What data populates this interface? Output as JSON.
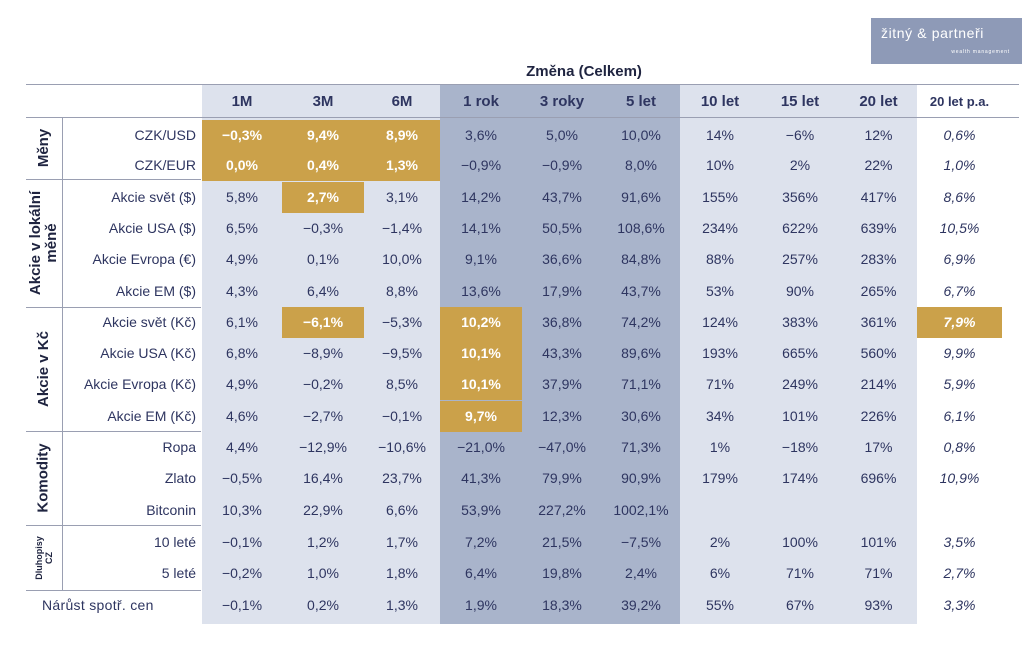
{
  "logo": {
    "name": "žitný & partneři",
    "tagline": "wealth management"
  },
  "title": "Změna (Celkem)",
  "columns": [
    "1M",
    "3M",
    "6M",
    "1 rok",
    "3 roky",
    "5 let",
    "10 let",
    "15 let",
    "20 let",
    "20 let p.a."
  ],
  "groups": [
    {
      "label": "Měny",
      "rows": [
        {
          "name": "CZK/USD",
          "values": [
            "-0,3%",
            "9,4%",
            "8,9%",
            "3,6%",
            "5,0%",
            "10,0%",
            "14%",
            "-6%",
            "12%",
            "0,6%"
          ]
        },
        {
          "name": "CZK/EUR",
          "values": [
            "0,0%",
            "0,4%",
            "1,3%",
            "-0,9%",
            "-0,9%",
            "8,0%",
            "10%",
            "2%",
            "22%",
            "1,0%"
          ]
        }
      ]
    },
    {
      "label": "Akcie v lokální měně",
      "rows": [
        {
          "name": "Akcie svět ($)",
          "values": [
            "5,8%",
            "2,7%",
            "3,1%",
            "14,2%",
            "43,7%",
            "91,6%",
            "155%",
            "356%",
            "417%",
            "8,6%"
          ]
        },
        {
          "name": "Akcie USA ($)",
          "values": [
            "6,5%",
            "-0,3%",
            "-1,4%",
            "14,1%",
            "50,5%",
            "108,6%",
            "234%",
            "622%",
            "639%",
            "10,5%"
          ]
        },
        {
          "name": "Akcie Evropa (€)",
          "values": [
            "4,9%",
            "0,1%",
            "10,0%",
            "9,1%",
            "36,6%",
            "84,8%",
            "88%",
            "257%",
            "283%",
            "6,9%"
          ]
        },
        {
          "name": "Akcie EM ($)",
          "values": [
            "4,3%",
            "6,4%",
            "8,8%",
            "13,6%",
            "17,9%",
            "43,7%",
            "53%",
            "90%",
            "265%",
            "6,7%"
          ]
        }
      ]
    },
    {
      "label": "Akcie v Kč",
      "rows": [
        {
          "name": "Akcie svět (Kč)",
          "values": [
            "6,1%",
            "-6,1%",
            "-5,3%",
            "10,2%",
            "36,8%",
            "74,2%",
            "124%",
            "383%",
            "361%",
            "7,9%"
          ]
        },
        {
          "name": "Akcie USA (Kč)",
          "values": [
            "6,8%",
            "-8,9%",
            "-9,5%",
            "10,1%",
            "43,3%",
            "89,6%",
            "193%",
            "665%",
            "560%",
            "9,9%"
          ]
        },
        {
          "name": "Akcie Evropa (Kč)",
          "values": [
            "4,9%",
            "-0,2%",
            "8,5%",
            "10,1%",
            "37,9%",
            "71,1%",
            "71%",
            "249%",
            "214%",
            "5,9%"
          ]
        },
        {
          "name": "Akcie EM (Kč)",
          "values": [
            "4,6%",
            "-2,7%",
            "-0,1%",
            "9,7%",
            "12,3%",
            "30,6%",
            "34%",
            "101%",
            "226%",
            "6,1%"
          ]
        }
      ]
    },
    {
      "label": "Komodity",
      "rows": [
        {
          "name": "Ropa",
          "values": [
            "4,4%",
            "-12,9%",
            "-10,6%",
            "-21,0%",
            "-47,0%",
            "71,3%",
            "1%",
            "-18%",
            "17%",
            "0,8%"
          ]
        },
        {
          "name": "Zlato",
          "values": [
            "-0,5%",
            "16,4%",
            "23,7%",
            "41,3%",
            "79,9%",
            "90,9%",
            "179%",
            "174%",
            "696%",
            "10,9%"
          ]
        },
        {
          "name": "Bitconin",
          "values": [
            "10,3%",
            "22,9%",
            "6,6%",
            "53,9%",
            "227,2%",
            "1002,1%",
            "",
            "",
            "",
            ""
          ]
        }
      ]
    },
    {
      "label": "Dluhopisy CZ",
      "rows": [
        {
          "name": "10 leté",
          "values": [
            "-0,1%",
            "1,2%",
            "1,7%",
            "7,2%",
            "21,5%",
            "-7,5%",
            "2%",
            "100%",
            "101%",
            "3,5%"
          ]
        },
        {
          "name": "5 leté",
          "values": [
            "-0,2%",
            "1,0%",
            "1,8%",
            "6,4%",
            "19,8%",
            "2,4%",
            "6%",
            "71%",
            "71%",
            "2,7%"
          ]
        }
      ]
    }
  ],
  "footer_row": {
    "name": "Nárůst spotř. cen",
    "values": [
      "-0,1%",
      "0,2%",
      "1,3%",
      "1,9%",
      "18,3%",
      "39,2%",
      "55%",
      "67%",
      "93%",
      "3,3%"
    ]
  },
  "highlighted_cells": [
    {
      "group": 0,
      "row": 0,
      "col": 0
    },
    {
      "group": 0,
      "row": 0,
      "col": 1
    },
    {
      "group": 0,
      "row": 0,
      "col": 2
    },
    {
      "group": 0,
      "row": 1,
      "col": 0
    },
    {
      "group": 0,
      "row": 1,
      "col": 1
    },
    {
      "group": 0,
      "row": 1,
      "col": 2
    },
    {
      "group": 1,
      "row": 0,
      "col": 1
    },
    {
      "group": 2,
      "row": 0,
      "col": 1
    },
    {
      "group": 2,
      "row": 0,
      "col": 3
    },
    {
      "group": 2,
      "row": 0,
      "col": 9
    },
    {
      "group": 2,
      "row": 1,
      "col": 3
    },
    {
      "group": 2,
      "row": 2,
      "col": 3
    },
    {
      "group": 2,
      "row": 3,
      "col": 3
    }
  ],
  "colors": {
    "highlight": "#cba14a",
    "band_light": "#dde2ed",
    "band_dark": "#a9b4cb",
    "text": "#2e3560"
  }
}
